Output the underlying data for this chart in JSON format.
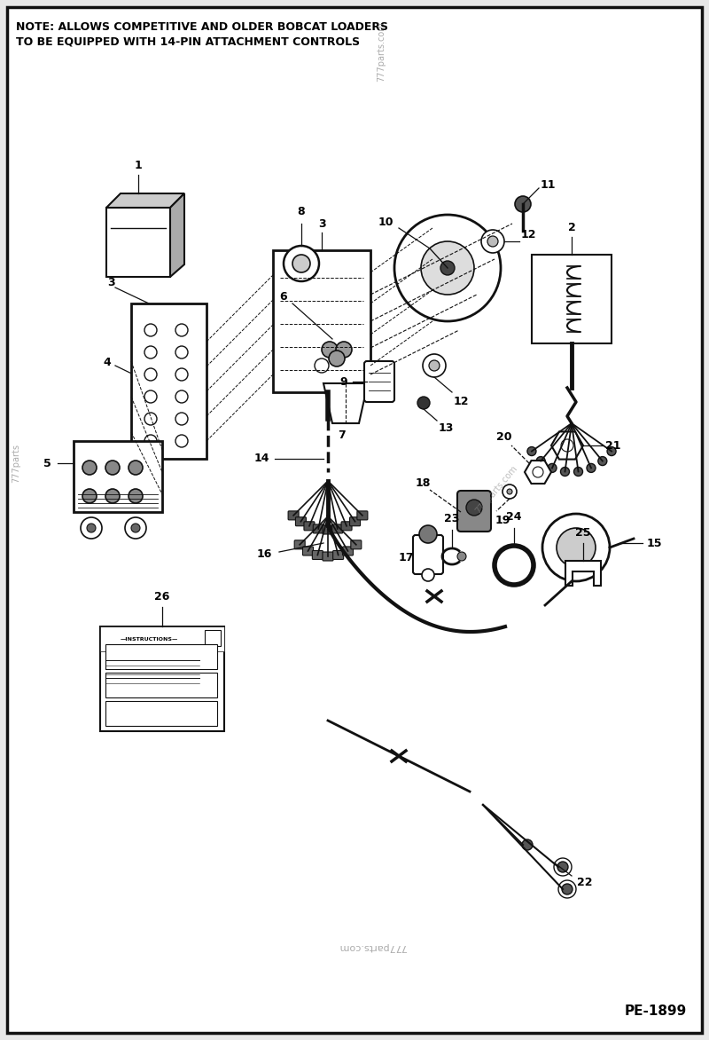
{
  "note_text": "NOTE: ALLOWS COMPETITIVE AND OLDER BOBCAT LOADERS\nTO BE EQUIPPED WITH 14-PIN ATTACHMENT CONTROLS",
  "part_number": "PE-1899",
  "bg_color": "#e8e8e8",
  "border_color": "#000000",
  "lc": "#111111",
  "wm1": "777parts.com",
  "wm2": "777parts.com",
  "wm3": "777parts"
}
